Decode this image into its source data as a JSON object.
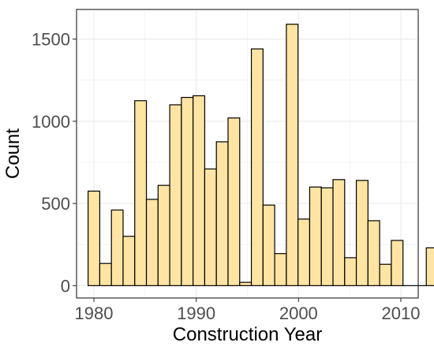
{
  "chart_data": {
    "type": "bar",
    "xlabel": "Construction Year",
    "ylabel": "Count",
    "xlim": [
      1978.3,
      2011.7
    ],
    "ylim": [
      -75,
      1680
    ],
    "x_ticks": [
      1980,
      1990,
      2000,
      2010
    ],
    "y_ticks": [
      0,
      500,
      1000,
      1500
    ],
    "x_tick_labels": [
      "1980",
      "1990",
      "2000",
      "2010"
    ],
    "y_tick_labels": [
      "0",
      "500",
      "1000",
      "1500"
    ],
    "grid": true,
    "bin_width": 1.14,
    "bin_start": 1979.43,
    "counts": [
      575,
      135,
      460,
      300,
      1125,
      525,
      610,
      1100,
      1145,
      1155,
      710,
      875,
      1020,
      20,
      1440,
      490,
      195,
      1590,
      405,
      600,
      595,
      645,
      170,
      640,
      395,
      130,
      275,
      0,
      0,
      230
    ],
    "fill_color": "#FFE4A3",
    "stroke_color": "#000000",
    "panel_border_color": "#333333",
    "grid_color": "#EBEBEB"
  }
}
